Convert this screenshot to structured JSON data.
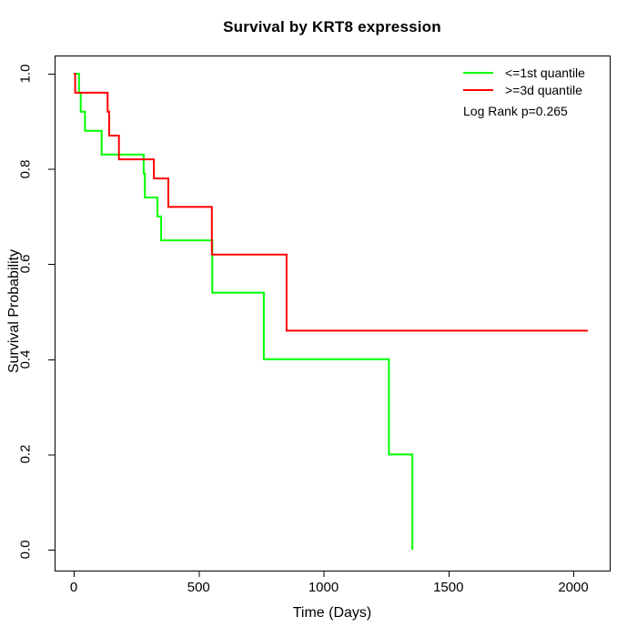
{
  "chart_data": {
    "type": "line",
    "subtype": "kaplan-meier-step",
    "title": "Survival by KRT8 expression",
    "xlabel": "Time (Days)",
    "ylabel": "Survival Probability",
    "xlim": [
      0,
      2060
    ],
    "ylim": [
      0.0,
      1.0
    ],
    "grid": false,
    "legend_position": "top-right-inside",
    "annotation": "Log Rank p=0.265",
    "axis_color": "#000000",
    "background_color": "#ffffff",
    "x_ticks": [
      {
        "value": 0,
        "label": "0"
      },
      {
        "value": 500,
        "label": "500"
      },
      {
        "value": 1000,
        "label": "1000"
      },
      {
        "value": 1500,
        "label": "1500"
      },
      {
        "value": 2000,
        "label": "2000"
      }
    ],
    "y_ticks": [
      {
        "value": 0.0,
        "label": "0.0"
      },
      {
        "value": 0.2,
        "label": "0.2"
      },
      {
        "value": 0.4,
        "label": "0.4"
      },
      {
        "value": 0.6,
        "label": "0.6"
      },
      {
        "value": 0.8,
        "label": "0.8"
      },
      {
        "value": 1.0,
        "label": "1.0"
      }
    ],
    "series": [
      {
        "name": "<=1st quantile",
        "color": "#00ff00",
        "steps": [
          [
            0,
            1.0
          ],
          [
            21,
            0.96
          ],
          [
            28,
            0.92
          ],
          [
            45,
            0.88
          ],
          [
            112,
            0.83
          ],
          [
            280,
            0.79
          ],
          [
            285,
            0.74
          ],
          [
            335,
            0.7
          ],
          [
            350,
            0.65
          ],
          [
            555,
            0.54
          ],
          [
            761,
            0.4
          ],
          [
            1262,
            0.2
          ],
          [
            1356,
            0.0
          ]
        ],
        "end_time": 1356
      },
      {
        "name": ">=3d quantile",
        "color": "#ff0000",
        "steps": [
          [
            0,
            1.0
          ],
          [
            6,
            0.96
          ],
          [
            136,
            0.92
          ],
          [
            142,
            0.87
          ],
          [
            181,
            0.82
          ],
          [
            321,
            0.78
          ],
          [
            379,
            0.72
          ],
          [
            553,
            0.62
          ],
          [
            852,
            0.46
          ]
        ],
        "end_time": 2058
      }
    ]
  }
}
